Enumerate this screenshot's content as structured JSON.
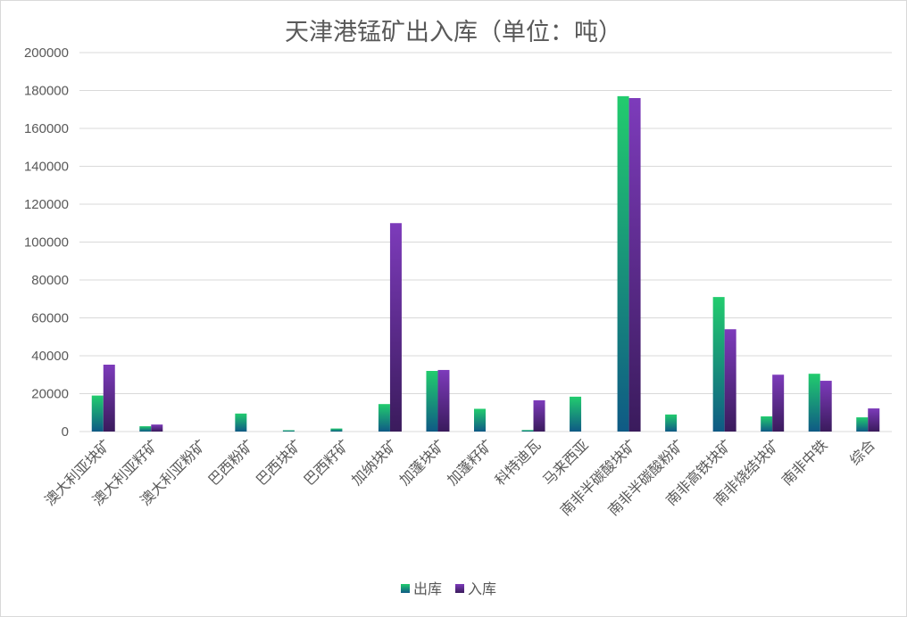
{
  "chart_data": {
    "type": "bar",
    "title": "天津港锰矿出入库（单位：吨）",
    "xlabel": "",
    "ylabel": "",
    "ylim": [
      0,
      200000
    ],
    "y_ticks": [
      0,
      20000,
      40000,
      60000,
      80000,
      100000,
      120000,
      140000,
      160000,
      180000,
      200000
    ],
    "grid": true,
    "legend_position": "bottom",
    "categories": [
      "澳大利亚块矿",
      "澳大利亚籽矿",
      "澳大利亚粉矿",
      "巴西粉矿",
      "巴西块矿",
      "巴西籽矿",
      "加纳块矿",
      "加蓬块矿",
      "加蓬籽矿",
      "科特迪瓦",
      "马来西亚",
      "南非半碳酸块矿",
      "南非半碳酸粉矿",
      "南非高铁块矿",
      "南非烧结块矿",
      "南非中铁",
      "综合"
    ],
    "series": [
      {
        "name": "出库",
        "color_top": "#22cc6e",
        "color_bottom": "#0f5a85",
        "values": [
          19000,
          2800,
          0,
          9500,
          700,
          1600,
          14500,
          32000,
          12000,
          800,
          18400,
          177000,
          9000,
          71000,
          8000,
          30500,
          7500
        ]
      },
      {
        "name": "入库",
        "color_top": "#7d3bbb",
        "color_bottom": "#3a1b5c",
        "values": [
          35300,
          3700,
          0,
          0,
          0,
          0,
          110000,
          32500,
          0,
          16500,
          0,
          176000,
          0,
          54000,
          30000,
          26800,
          12200
        ]
      }
    ]
  }
}
